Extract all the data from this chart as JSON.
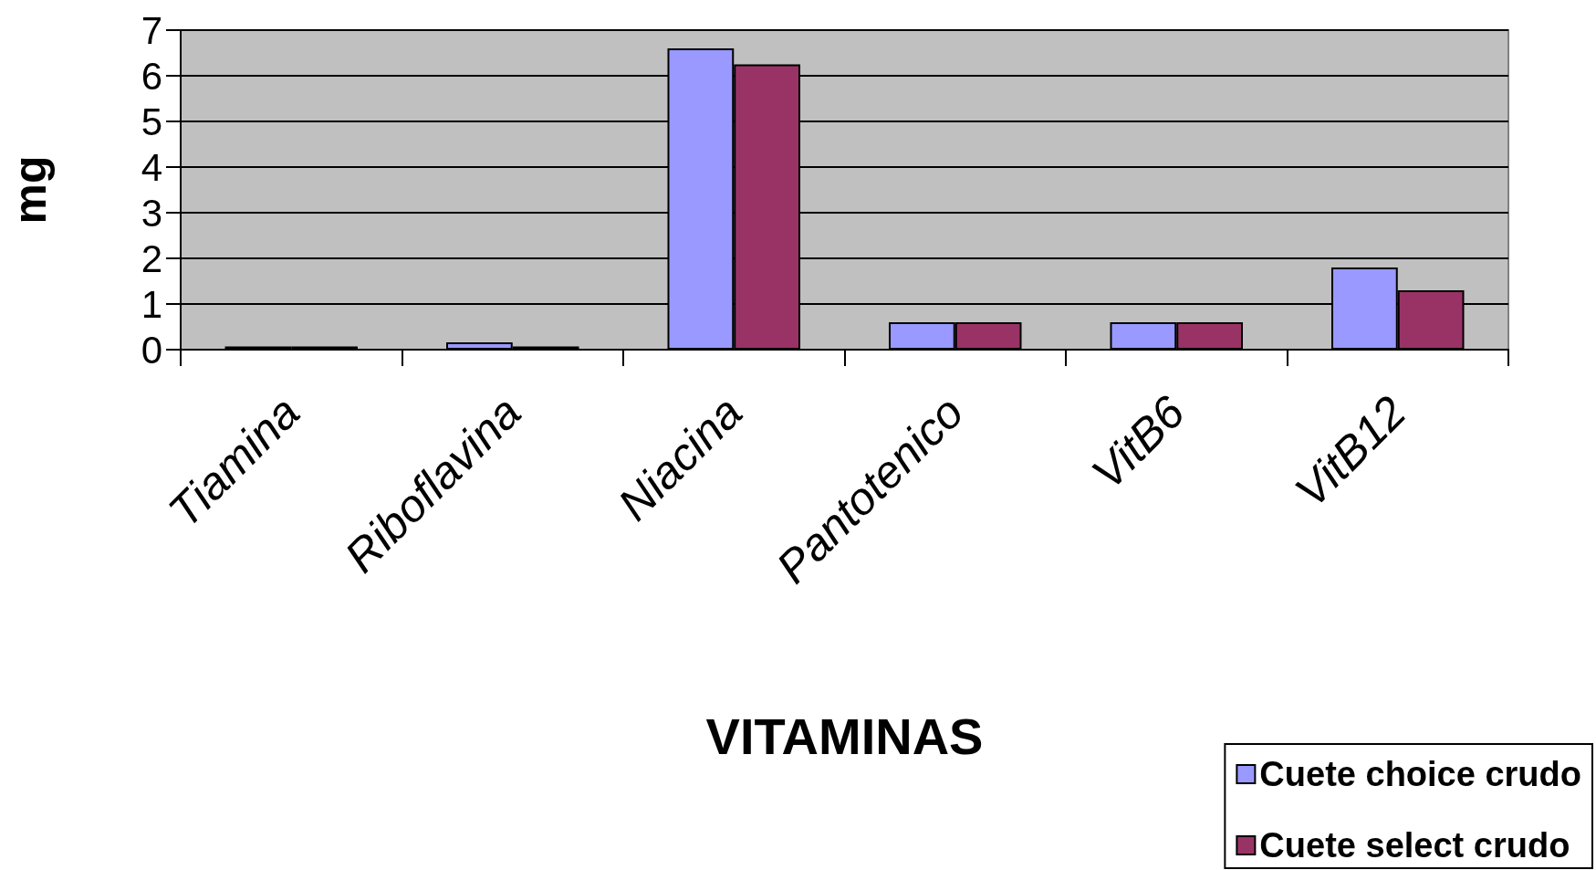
{
  "chart_data": {
    "type": "bar",
    "xlabel": "VITAMINAS",
    "ylabel": "mg",
    "categories": [
      "Tiamina",
      "Riboflavina",
      "Niacina",
      "Pantotenico",
      "VitB6",
      "VitB12"
    ],
    "series": [
      {
        "name": "Cuete choice crudo",
        "color": "#9999ff",
        "values": [
          0.07,
          0.16,
          6.6,
          0.6,
          0.6,
          1.8
        ]
      },
      {
        "name": "Cuete select crudo",
        "color": "#993366",
        "values": [
          0.07,
          0.07,
          6.25,
          0.6,
          0.6,
          1.3
        ]
      }
    ],
    "ylim": [
      0,
      7
    ],
    "yticks": [
      0,
      1,
      2,
      3,
      4,
      5,
      6,
      7
    ],
    "grid": "y",
    "legend": "bottom right"
  }
}
